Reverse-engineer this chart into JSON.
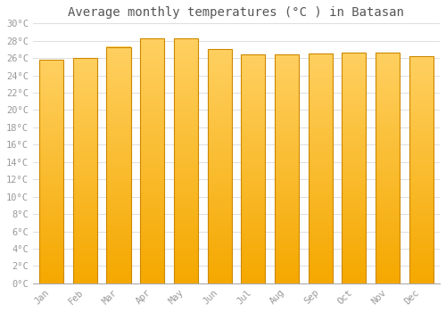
{
  "title": "Average monthly temperatures (°C ) in Batasan",
  "months": [
    "Jan",
    "Feb",
    "Mar",
    "Apr",
    "May",
    "Jun",
    "Jul",
    "Aug",
    "Sep",
    "Oct",
    "Nov",
    "Dec"
  ],
  "values": [
    25.8,
    26.0,
    27.3,
    28.3,
    28.3,
    27.0,
    26.4,
    26.4,
    26.5,
    26.6,
    26.6,
    26.2
  ],
  "bar_color_bottom": "#F5A800",
  "bar_color_top": "#FFD060",
  "bar_edge_color": "#CC8800",
  "background_color": "#FFFFFF",
  "plot_bg_color": "#FFFFFF",
  "grid_color": "#DDDDDD",
  "ytick_step": 2,
  "ymin": 0,
  "ymax": 30,
  "title_fontsize": 10,
  "tick_fontsize": 7.5,
  "font_color": "#999999",
  "title_color": "#555555"
}
